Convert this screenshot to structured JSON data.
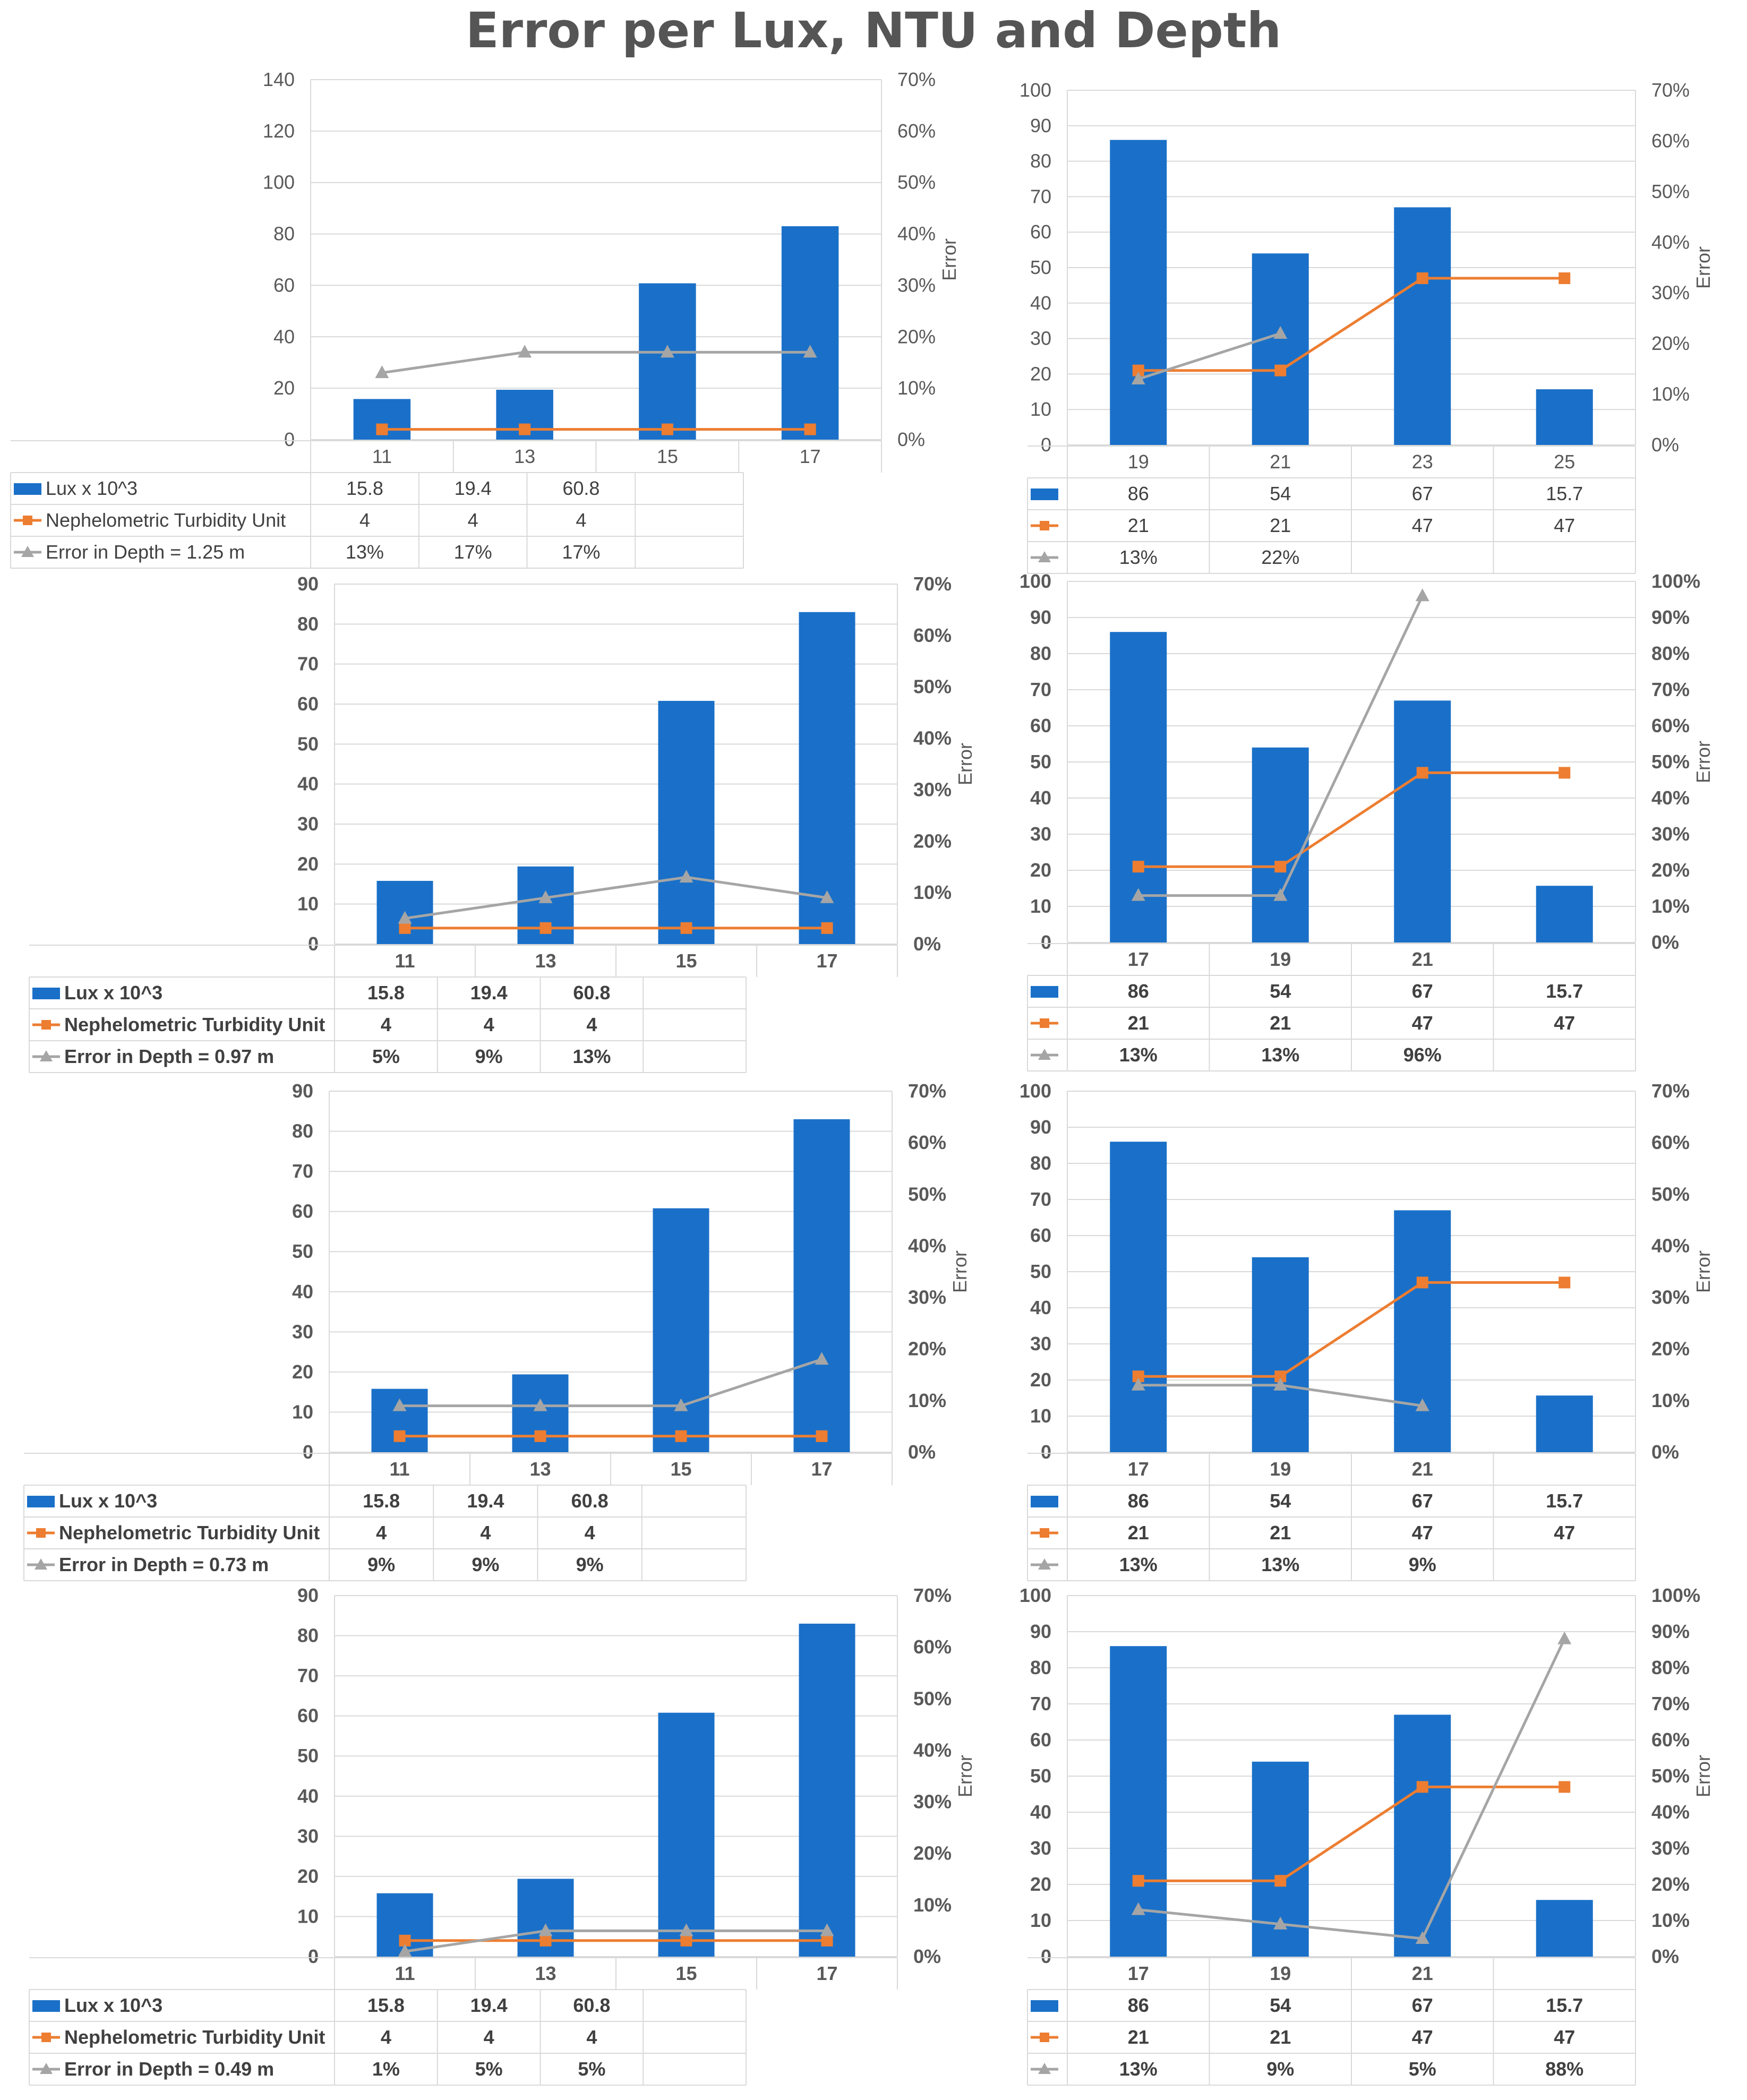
{
  "title": "Error per Lux, NTU and Depth",
  "colors": {
    "lux": "#1a70c8",
    "ntu": "#ed7d31",
    "error": "#a5a5a5"
  },
  "chart_data": [
    {
      "type": "bar",
      "id": "L1",
      "style": "normal",
      "categories": [
        "11",
        "13",
        "15",
        "17"
      ],
      "ylim": [
        0,
        140
      ],
      "ystep": 20,
      "y2lim": [
        0,
        70
      ],
      "y2step": 10,
      "y2label": "Error",
      "series": [
        {
          "name": "Lux x 10^3",
          "kind": "bar",
          "values": [
            15.8,
            19.4,
            60.8,
            83
          ],
          "labels": [
            "15.8",
            "19.4",
            "60.8",
            ""
          ]
        },
        {
          "name": "Nephelometric Turbidity Unit",
          "kind": "line",
          "marker": "square",
          "values": [
            4,
            4,
            4,
            4
          ],
          "labels": [
            "4",
            "4",
            "4",
            ""
          ]
        },
        {
          "name": "Error in Depth = 1.25 m",
          "kind": "line",
          "marker": "triangle",
          "values": [
            13,
            17,
            17,
            17
          ],
          "labels": [
            "13%",
            "17%",
            "17%",
            ""
          ]
        }
      ]
    },
    {
      "type": "bar",
      "id": "R1",
      "style": "normal",
      "categories": [
        "19",
        "21",
        "23",
        "25"
      ],
      "ylim": [
        0,
        100
      ],
      "ystep": 10,
      "y2lim": [
        0,
        70
      ],
      "y2step": 10,
      "y2label": "Error",
      "series": [
        {
          "name": "",
          "kind": "bar",
          "values": [
            86,
            54,
            67,
            15.7
          ],
          "labels": [
            "86",
            "54",
            "67",
            "15.7"
          ]
        },
        {
          "name": "",
          "kind": "line",
          "marker": "square",
          "values": [
            21,
            21,
            47,
            47
          ],
          "labels": [
            "21",
            "21",
            "47",
            "47"
          ]
        },
        {
          "name": "",
          "kind": "line",
          "marker": "triangle",
          "values": [
            13,
            22,
            null,
            null
          ],
          "labels": [
            "13%",
            "22%",
            "",
            ""
          ]
        }
      ]
    },
    {
      "type": "bar",
      "id": "L2",
      "style": "bold",
      "categories": [
        "11",
        "13",
        "15",
        "17"
      ],
      "ylim": [
        0,
        90
      ],
      "ystep": 10,
      "y2lim": [
        0,
        70
      ],
      "y2step": 10,
      "y2label": "Error",
      "series": [
        {
          "name": "Lux x 10^3",
          "kind": "bar",
          "values": [
            15.8,
            19.4,
            60.8,
            83
          ],
          "labels": [
            "15.8",
            "19.4",
            "60.8",
            ""
          ]
        },
        {
          "name": "Nephelometric Turbidity Unit",
          "kind": "line",
          "marker": "square",
          "values": [
            4,
            4,
            4,
            4
          ],
          "labels": [
            "4",
            "4",
            "4",
            ""
          ]
        },
        {
          "name": "Error in Depth = 0.97 m",
          "kind": "line",
          "marker": "triangle",
          "values": [
            5,
            9,
            13,
            9
          ],
          "labels": [
            "5%",
            "9%",
            "13%",
            ""
          ]
        }
      ]
    },
    {
      "type": "bar",
      "id": "R2",
      "style": "bold",
      "categories": [
        "17",
        "19",
        "21",
        ""
      ],
      "ylim": [
        0,
        100
      ],
      "ystep": 10,
      "y2lim": [
        0,
        100
      ],
      "y2step": 10,
      "y2label": "Error",
      "series": [
        {
          "name": "",
          "kind": "bar",
          "values": [
            86,
            54,
            67,
            15.7
          ],
          "labels": [
            "86",
            "54",
            "67",
            "15.7"
          ]
        },
        {
          "name": "",
          "kind": "line",
          "marker": "square",
          "values": [
            21,
            21,
            47,
            47
          ],
          "labels": [
            "21",
            "21",
            "47",
            "47"
          ]
        },
        {
          "name": "",
          "kind": "line",
          "marker": "triangle",
          "values": [
            13,
            13,
            96,
            null
          ],
          "labels": [
            "13%",
            "13%",
            "96%",
            ""
          ]
        }
      ]
    },
    {
      "type": "bar",
      "id": "L3",
      "style": "bold",
      "categories": [
        "11",
        "13",
        "15",
        "17"
      ],
      "ylim": [
        0,
        90
      ],
      "ystep": 10,
      "y2lim": [
        0,
        70
      ],
      "y2step": 10,
      "y2label": "Error",
      "series": [
        {
          "name": "Lux x 10^3",
          "kind": "bar",
          "values": [
            15.8,
            19.4,
            60.8,
            83
          ],
          "labels": [
            "15.8",
            "19.4",
            "60.8",
            ""
          ]
        },
        {
          "name": "Nephelometric Turbidity Unit",
          "kind": "line",
          "marker": "square",
          "values": [
            4,
            4,
            4,
            4
          ],
          "labels": [
            "4",
            "4",
            "4",
            ""
          ]
        },
        {
          "name": "Error in Depth = 0.73 m",
          "kind": "line",
          "marker": "triangle",
          "values": [
            9,
            9,
            9,
            18
          ],
          "labels": [
            "9%",
            "9%",
            "9%",
            ""
          ]
        }
      ]
    },
    {
      "type": "bar",
      "id": "R3",
      "style": "bold",
      "categories": [
        "17",
        "19",
        "21",
        ""
      ],
      "ylim": [
        0,
        100
      ],
      "ystep": 10,
      "y2lim": [
        0,
        70
      ],
      "y2step": 10,
      "y2label": "Error",
      "series": [
        {
          "name": "",
          "kind": "bar",
          "values": [
            86,
            54,
            67,
            15.7
          ],
          "labels": [
            "86",
            "54",
            "67",
            "15.7"
          ]
        },
        {
          "name": "",
          "kind": "line",
          "marker": "square",
          "values": [
            21,
            21,
            47,
            47
          ],
          "labels": [
            "21",
            "21",
            "47",
            "47"
          ]
        },
        {
          "name": "",
          "kind": "line",
          "marker": "triangle",
          "values": [
            13,
            13,
            9,
            null
          ],
          "labels": [
            "13%",
            "13%",
            "9%",
            ""
          ]
        }
      ]
    },
    {
      "type": "bar",
      "id": "L4",
      "style": "bold",
      "categories": [
        "11",
        "13",
        "15",
        "17"
      ],
      "ylim": [
        0,
        90
      ],
      "ystep": 10,
      "y2lim": [
        0,
        70
      ],
      "y2step": 10,
      "y2label": "Error",
      "series": [
        {
          "name": "Lux x 10^3",
          "kind": "bar",
          "values": [
            15.8,
            19.4,
            60.8,
            83
          ],
          "labels": [
            "15.8",
            "19.4",
            "60.8",
            ""
          ]
        },
        {
          "name": "Nephelometric Turbidity Unit",
          "kind": "line",
          "marker": "square",
          "values": [
            4,
            4,
            4,
            4
          ],
          "labels": [
            "4",
            "4",
            "4",
            ""
          ]
        },
        {
          "name": "Error in Depth = 0.49 m",
          "kind": "line",
          "marker": "triangle",
          "values": [
            1,
            5,
            5,
            5
          ],
          "labels": [
            "1%",
            "5%",
            "5%",
            ""
          ]
        }
      ]
    },
    {
      "type": "bar",
      "id": "R4",
      "style": "bold",
      "categories": [
        "17",
        "19",
        "21",
        ""
      ],
      "ylim": [
        0,
        100
      ],
      "ystep": 10,
      "y2lim": [
        0,
        100
      ],
      "y2step": 10,
      "y2label": "Error",
      "series": [
        {
          "name": "",
          "kind": "bar",
          "values": [
            86,
            54,
            67,
            15.7
          ],
          "labels": [
            "86",
            "54",
            "67",
            "15.7"
          ]
        },
        {
          "name": "",
          "kind": "line",
          "marker": "square",
          "values": [
            21,
            21,
            47,
            47
          ],
          "labels": [
            "21",
            "21",
            "47",
            "47"
          ]
        },
        {
          "name": "",
          "kind": "line",
          "marker": "triangle",
          "values": [
            13,
            9,
            5,
            88
          ],
          "labels": [
            "13%",
            "9%",
            "5%",
            "88%"
          ]
        }
      ]
    }
  ]
}
